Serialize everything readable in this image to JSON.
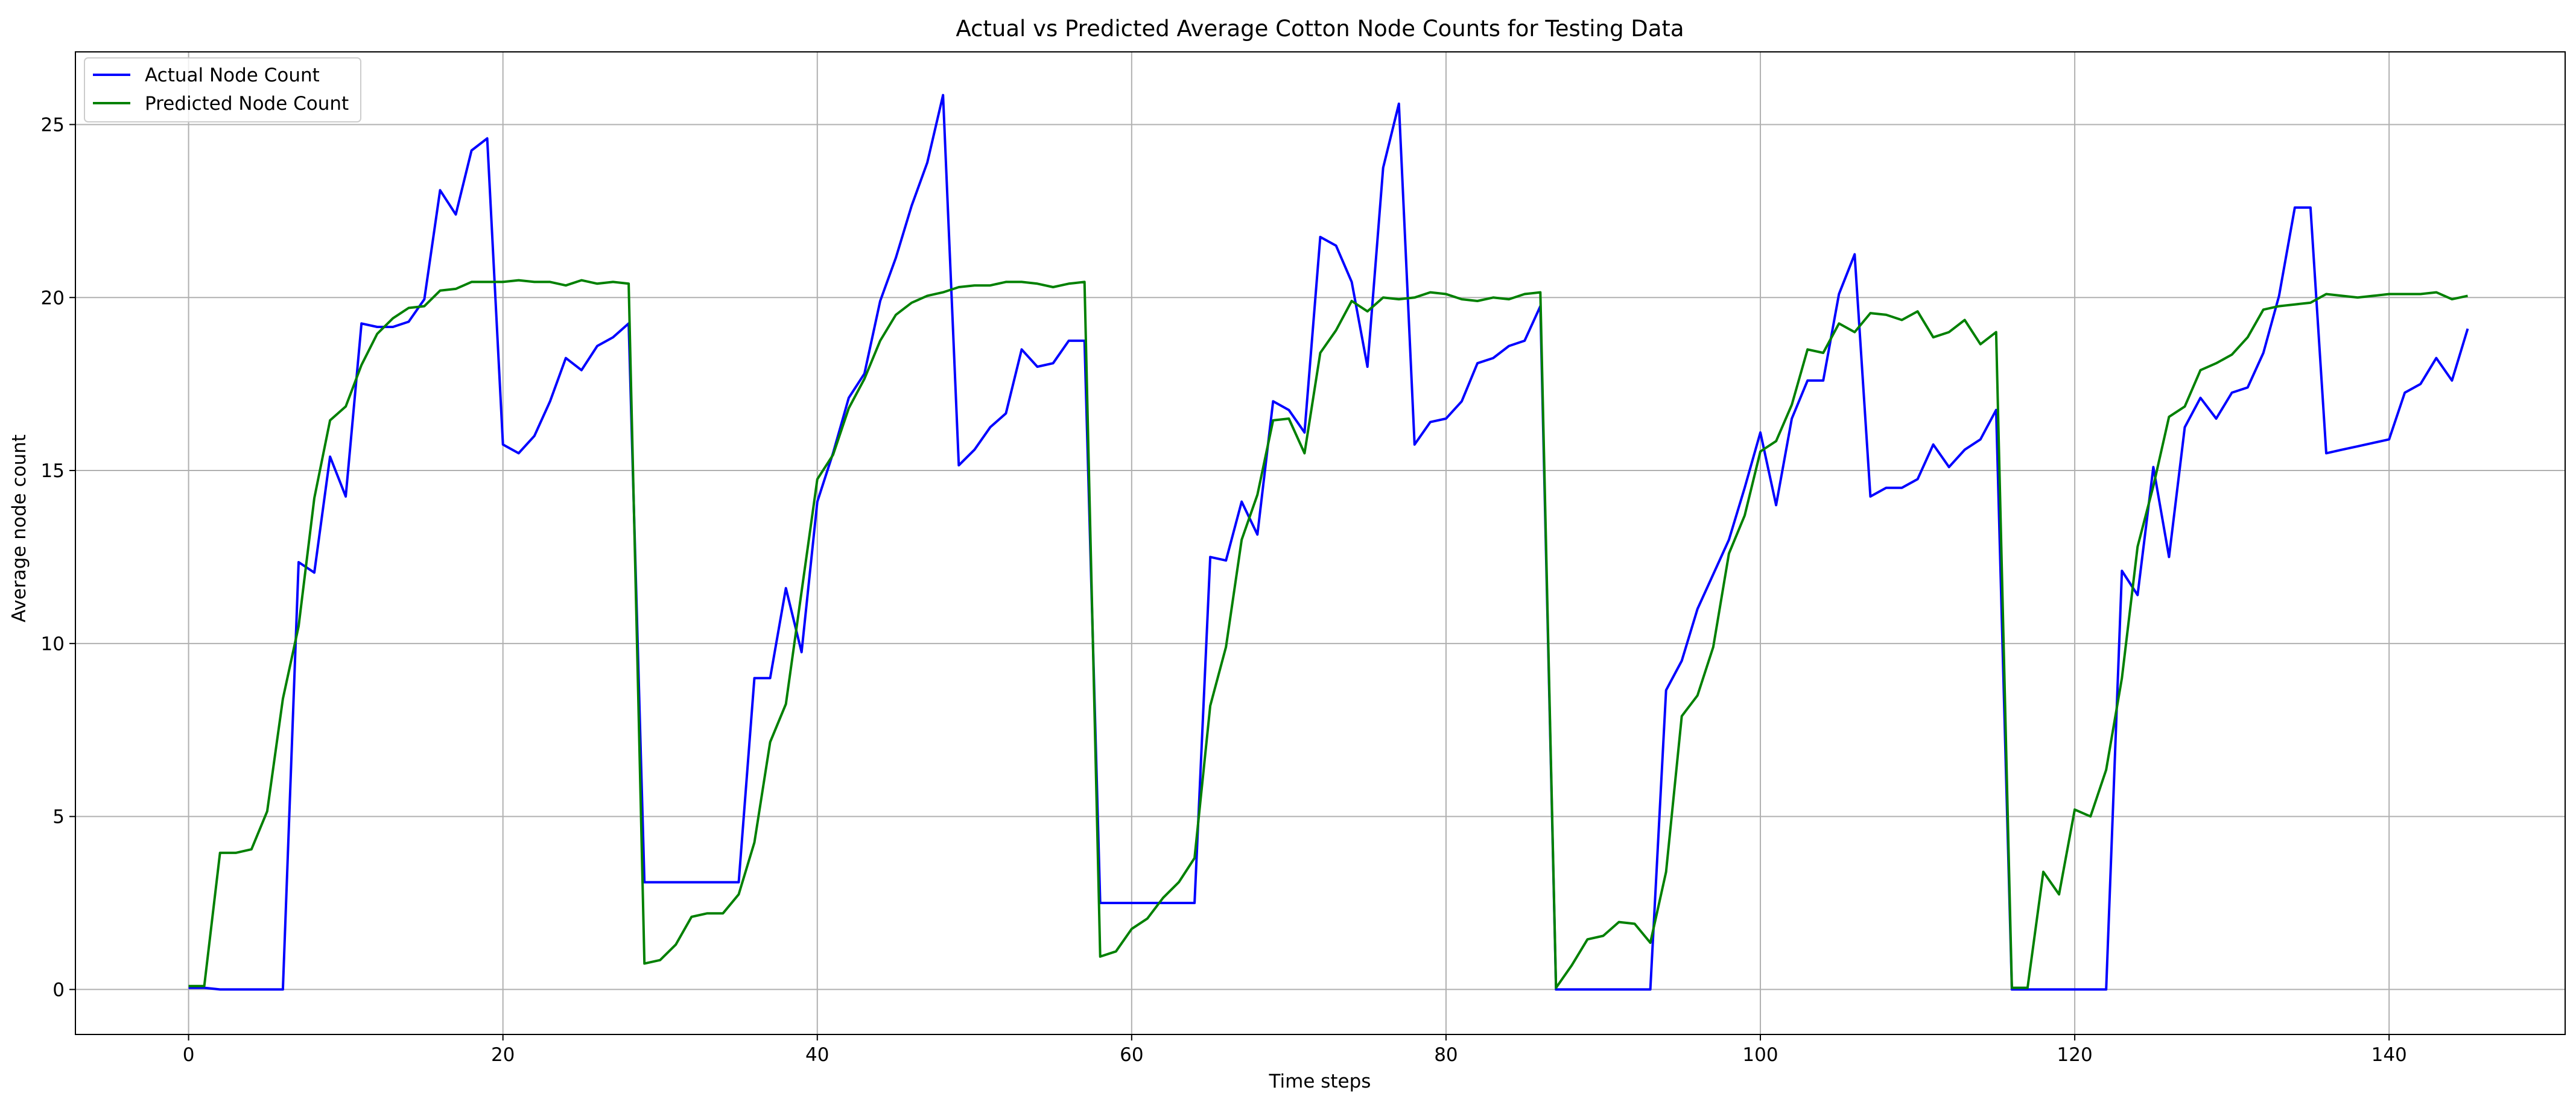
{
  "chart_data": {
    "type": "line",
    "title": "Actual vs Predicted Average Cotton Node Counts for Testing Data",
    "xlabel": "Time steps",
    "ylabel": "Average node count",
    "xlim": [
      -7.2,
      151.2
    ],
    "ylim": [
      -1.3,
      27.1
    ],
    "xticks": [
      0,
      20,
      40,
      60,
      80,
      100,
      120,
      140
    ],
    "yticks": [
      0,
      5,
      10,
      15,
      20,
      25
    ],
    "grid": true,
    "legend_position": "upper left",
    "series": [
      {
        "name": "Actual Node Count",
        "color": "#0000ff",
        "x_start": 0,
        "values": [
          0.05,
          0.05,
          0.0,
          0.0,
          0.0,
          0.0,
          0.0,
          12.35,
          12.05,
          15.4,
          14.25,
          19.25,
          19.15,
          19.15,
          19.3,
          19.95,
          23.1,
          22.4,
          24.25,
          24.6,
          15.75,
          15.5,
          16.0,
          17.0,
          18.25,
          17.9,
          18.6,
          18.85,
          19.25,
          3.1,
          3.1,
          3.1,
          3.1,
          3.1,
          3.1,
          3.1,
          9.0,
          9.0,
          11.6,
          9.75,
          14.1,
          15.5,
          17.1,
          17.8,
          19.9,
          21.15,
          22.65,
          23.9,
          25.85,
          15.15,
          15.6,
          16.25,
          16.65,
          18.5,
          18.0,
          18.1,
          18.75,
          18.75,
          2.5,
          2.5,
          2.5,
          2.5,
          2.5,
          2.5,
          2.5,
          12.5,
          12.4,
          14.1,
          13.15,
          17.0,
          16.75,
          16.1,
          21.75,
          21.5,
          20.45,
          18.0,
          23.75,
          25.6,
          15.75,
          16.4,
          16.5,
          17.0,
          18.1,
          18.25,
          18.6,
          18.75,
          19.75,
          0.0,
          0.0,
          0.0,
          0.0,
          0.0,
          0.0,
          0.0,
          8.65,
          9.5,
          11.0,
          12.0,
          13.0,
          14.5,
          16.1,
          14.0,
          16.5,
          17.6,
          17.6,
          20.1,
          21.25,
          14.25,
          14.5,
          14.5,
          14.75,
          15.75,
          15.1,
          15.6,
          15.9,
          16.75,
          0.0,
          0.0,
          0.0,
          0.0,
          0.0,
          0.0,
          0.0,
          12.1,
          11.4,
          15.1,
          12.5,
          16.25,
          17.1,
          16.5,
          17.25,
          17.4,
          18.4,
          20.05,
          22.6,
          22.6,
          15.5,
          15.6,
          15.7,
          15.8,
          15.9,
          17.25,
          17.5,
          18.25,
          17.6,
          19.1
        ]
      },
      {
        "name": "Predicted Node Count",
        "color": "#008000",
        "x_start": 0,
        "values": [
          0.1,
          0.1,
          3.95,
          3.95,
          4.05,
          5.15,
          8.4,
          10.5,
          14.2,
          16.45,
          16.85,
          18.05,
          18.95,
          19.4,
          19.7,
          19.75,
          20.2,
          20.25,
          20.45,
          20.45,
          20.45,
          20.5,
          20.45,
          20.45,
          20.35,
          20.5,
          20.4,
          20.45,
          20.4,
          0.75,
          0.85,
          1.3,
          2.1,
          2.2,
          2.2,
          2.75,
          4.25,
          7.15,
          8.25,
          11.5,
          14.75,
          15.45,
          16.8,
          17.65,
          18.75,
          19.5,
          19.85,
          20.05,
          20.15,
          20.3,
          20.35,
          20.35,
          20.45,
          20.45,
          20.4,
          20.3,
          20.4,
          20.45,
          0.95,
          1.1,
          1.75,
          2.05,
          2.65,
          3.1,
          3.8,
          8.2,
          9.9,
          13.0,
          14.3,
          16.45,
          16.5,
          15.5,
          18.4,
          19.05,
          19.9,
          19.6,
          20.0,
          19.95,
          20.0,
          20.15,
          20.1,
          19.95,
          19.9,
          20.0,
          19.95,
          20.1,
          20.15,
          0.05,
          0.7,
          1.45,
          1.55,
          1.95,
          1.9,
          1.35,
          3.4,
          7.9,
          8.5,
          9.9,
          12.6,
          13.7,
          15.55,
          15.85,
          16.9,
          18.5,
          18.4,
          19.25,
          19.0,
          19.55,
          19.5,
          19.35,
          19.6,
          18.85,
          19.0,
          19.35,
          18.65,
          19.0,
          0.05,
          0.05,
          3.4,
          2.75,
          5.2,
          5.0,
          6.35,
          9.0,
          12.8,
          14.55,
          16.55,
          16.85,
          17.9,
          18.1,
          18.35,
          18.85,
          19.65,
          19.75,
          19.8,
          19.85,
          20.1,
          20.05,
          20.0,
          20.05,
          20.1,
          20.1,
          20.1,
          20.15,
          19.95,
          20.05
        ]
      }
    ]
  }
}
